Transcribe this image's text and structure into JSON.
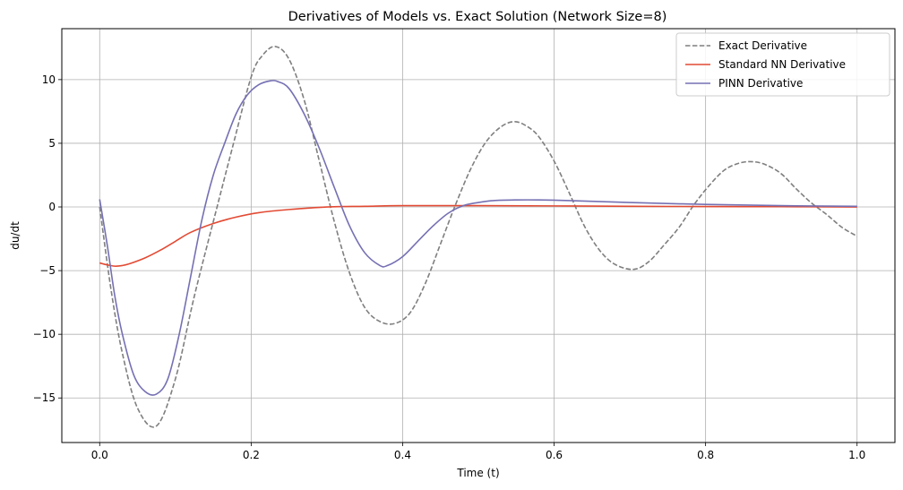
{
  "chart_data": {
    "type": "line",
    "title": "Derivatives of Models vs. Exact Solution (Network Size=8)",
    "xlabel": "Time (t)",
    "ylabel": "du/dt",
    "xlim": [
      -0.05,
      1.05
    ],
    "ylim": [
      -18.5,
      14.0
    ],
    "xticks": [
      0.0,
      0.2,
      0.4,
      0.6,
      0.8,
      1.0
    ],
    "xtick_labels": [
      "0.0",
      "0.2",
      "0.4",
      "0.6",
      "0.8",
      "1.0"
    ],
    "yticks": [
      -15,
      -10,
      -5,
      0,
      5,
      10
    ],
    "ytick_labels": [
      "−15",
      "−10",
      "−5",
      "0",
      "5",
      "10"
    ],
    "grid": true,
    "legend_position": "top-right",
    "series": [
      {
        "name": "Exact Derivative",
        "color": "#7f7f7f",
        "dash": "dashed",
        "x": [
          0.0,
          0.015,
          0.03,
          0.05,
          0.075,
          0.1,
          0.125,
          0.155,
          0.175,
          0.2,
          0.215,
          0.232,
          0.25,
          0.27,
          0.29,
          0.31,
          0.33,
          0.35,
          0.37,
          0.39,
          0.41,
          0.43,
          0.45,
          0.47,
          0.49,
          0.51,
          0.53,
          0.548,
          0.565,
          0.58,
          0.6,
          0.62,
          0.64,
          0.66,
          0.68,
          0.705,
          0.725,
          0.745,
          0.765,
          0.785,
          0.805,
          0.825,
          0.845,
          0.863,
          0.88,
          0.9,
          0.92,
          0.94,
          0.96,
          0.98,
          1.0
        ],
        "values": [
          0.0,
          -6.5,
          -11.5,
          -15.8,
          -17.2,
          -13.5,
          -7.0,
          0.0,
          4.6,
          10.2,
          11.9,
          12.6,
          11.6,
          8.4,
          3.6,
          -1.2,
          -5.2,
          -7.9,
          -9.0,
          -9.15,
          -8.3,
          -6.0,
          -2.9,
          0.2,
          3.0,
          5.1,
          6.3,
          6.7,
          6.3,
          5.5,
          3.6,
          1.1,
          -1.5,
          -3.4,
          -4.5,
          -4.9,
          -4.3,
          -3.0,
          -1.6,
          0.2,
          1.7,
          2.9,
          3.45,
          3.55,
          3.3,
          2.6,
          1.4,
          0.3,
          -0.6,
          -1.6,
          -2.3
        ]
      },
      {
        "name": "Standard NN Derivative",
        "color": "#e24a33",
        "dash": "solid",
        "x": [
          0.0,
          0.01,
          0.02,
          0.03,
          0.04,
          0.06,
          0.08,
          0.1,
          0.12,
          0.15,
          0.18,
          0.21,
          0.25,
          0.3,
          0.35,
          0.4,
          0.5,
          0.6,
          0.7,
          0.8,
          0.9,
          1.0
        ],
        "values": [
          -4.4,
          -4.55,
          -4.65,
          -4.6,
          -4.45,
          -4.0,
          -3.4,
          -2.7,
          -2.0,
          -1.3,
          -0.8,
          -0.45,
          -0.2,
          0.0,
          0.05,
          0.1,
          0.1,
          0.08,
          0.05,
          0.03,
          0.02,
          0.0
        ]
      },
      {
        "name": "PINN Derivative",
        "color": "#7570b3",
        "dash": "solid",
        "x": [
          0.0,
          0.01,
          0.02,
          0.03,
          0.045,
          0.06,
          0.075,
          0.09,
          0.105,
          0.12,
          0.135,
          0.15,
          0.165,
          0.18,
          0.195,
          0.21,
          0.225,
          0.235,
          0.25,
          0.27,
          0.29,
          0.31,
          0.33,
          0.35,
          0.37,
          0.38,
          0.4,
          0.42,
          0.44,
          0.46,
          0.48,
          0.5,
          0.52,
          0.55,
          0.58,
          0.62,
          0.7,
          0.8,
          0.9,
          1.0
        ],
        "values": [
          0.6,
          -3.0,
          -7.0,
          -10.0,
          -13.2,
          -14.5,
          -14.7,
          -13.5,
          -10.0,
          -5.5,
          -1.0,
          2.5,
          5.0,
          7.3,
          8.8,
          9.6,
          9.9,
          9.85,
          9.3,
          7.3,
          4.6,
          1.5,
          -1.5,
          -3.6,
          -4.6,
          -4.6,
          -3.9,
          -2.7,
          -1.5,
          -0.5,
          0.1,
          0.35,
          0.5,
          0.55,
          0.55,
          0.5,
          0.35,
          0.2,
          0.1,
          0.05
        ]
      }
    ]
  }
}
